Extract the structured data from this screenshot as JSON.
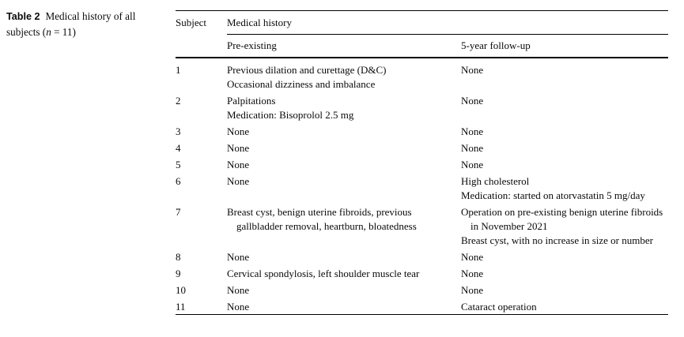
{
  "caption": {
    "label": "Table 2",
    "text_pre": "Medical history of all subjects (",
    "n_symbol": "n",
    "text_post": " = 11)"
  },
  "table": {
    "col_subject": "Subject",
    "col_group": "Medical history",
    "col_pre": "Pre-existing",
    "col_follow": "5-year follow-up",
    "rows": [
      {
        "subject": "1",
        "pre": [
          "Previous dilation and curettage (D&C)",
          "Occasional dizziness and imbalance"
        ],
        "follow": [
          "None"
        ]
      },
      {
        "subject": "2",
        "pre": [
          "Palpitations",
          "Medication: Bisoprolol 2.5 mg"
        ],
        "follow": [
          "None"
        ]
      },
      {
        "subject": "3",
        "pre": [
          "None"
        ],
        "follow": [
          "None"
        ]
      },
      {
        "subject": "4",
        "pre": [
          "None"
        ],
        "follow": [
          "None"
        ]
      },
      {
        "subject": "5",
        "pre": [
          "None"
        ],
        "follow": [
          "None"
        ]
      },
      {
        "subject": "6",
        "pre": [
          "None"
        ],
        "follow": [
          "High cholesterol",
          "Medication: started on atorvastatin 5 mg/day"
        ]
      },
      {
        "subject": "7",
        "pre": [
          "Breast cyst, benign uterine fibroids, previous gallbladder removal, heartburn, bloatedness"
        ],
        "follow": [
          "Operation on pre-existing benign uterine fibroids in November 2021",
          "Breast cyst, with no increase in size or number"
        ]
      },
      {
        "subject": "8",
        "pre": [
          "None"
        ],
        "follow": [
          "None"
        ]
      },
      {
        "subject": "9",
        "pre": [
          "Cervical spondylosis, left shoulder muscle tear"
        ],
        "follow": [
          "None"
        ]
      },
      {
        "subject": "10",
        "pre": [
          "None"
        ],
        "follow": [
          "None"
        ]
      },
      {
        "subject": "11",
        "pre": [
          "None"
        ],
        "follow": [
          "Cataract operation"
        ]
      }
    ]
  }
}
